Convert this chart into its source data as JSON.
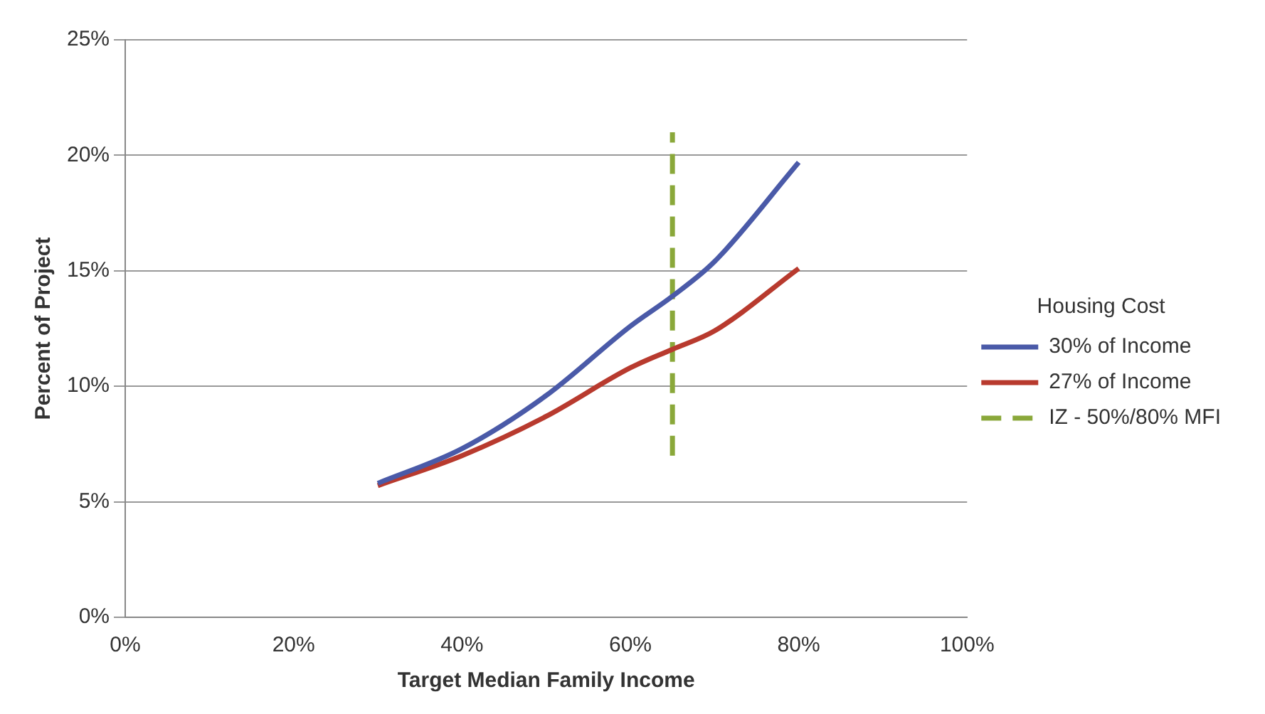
{
  "chart_data": {
    "type": "line",
    "xlabel": "Target Median Family Income",
    "ylabel": "Percent of Project",
    "legend_title": "Housing Cost",
    "x": [
      30,
      40,
      50,
      60,
      65,
      70,
      80
    ],
    "series": [
      {
        "name": "30% of Income",
        "color": "#4a5aa8",
        "values": [
          5.8,
          7.3,
          9.6,
          12.6,
          13.9,
          15.4,
          19.7
        ]
      },
      {
        "name": "27% of Income",
        "color": "#b83a2e",
        "values": [
          5.7,
          7.0,
          8.7,
          10.8,
          11.6,
          12.4,
          15.1
        ]
      },
      {
        "name": "IZ - 50%/80% MFI",
        "color": "#8aa83a",
        "x": [
          65,
          65
        ],
        "values": [
          7,
          21
        ],
        "line_style": "dashed"
      }
    ],
    "xlim": [
      0,
      100
    ],
    "ylim": [
      0,
      25
    ],
    "xticks": [
      {
        "value": 0,
        "label": "0%"
      },
      {
        "value": 20,
        "label": "20%"
      },
      {
        "value": 40,
        "label": "40%"
      },
      {
        "value": 60,
        "label": "60%"
      },
      {
        "value": 80,
        "label": "80%"
      },
      {
        "value": 100,
        "label": "100%"
      }
    ],
    "yticks": [
      {
        "value": 0,
        "label": "0%"
      },
      {
        "value": 5,
        "label": "5%"
      },
      {
        "value": 10,
        "label": "10%"
      },
      {
        "value": 15,
        "label": "15%"
      },
      {
        "value": 20,
        "label": "20%"
      },
      {
        "value": 25,
        "label": "25%"
      }
    ],
    "grid": "y",
    "legend": "right",
    "marker": "none"
  }
}
